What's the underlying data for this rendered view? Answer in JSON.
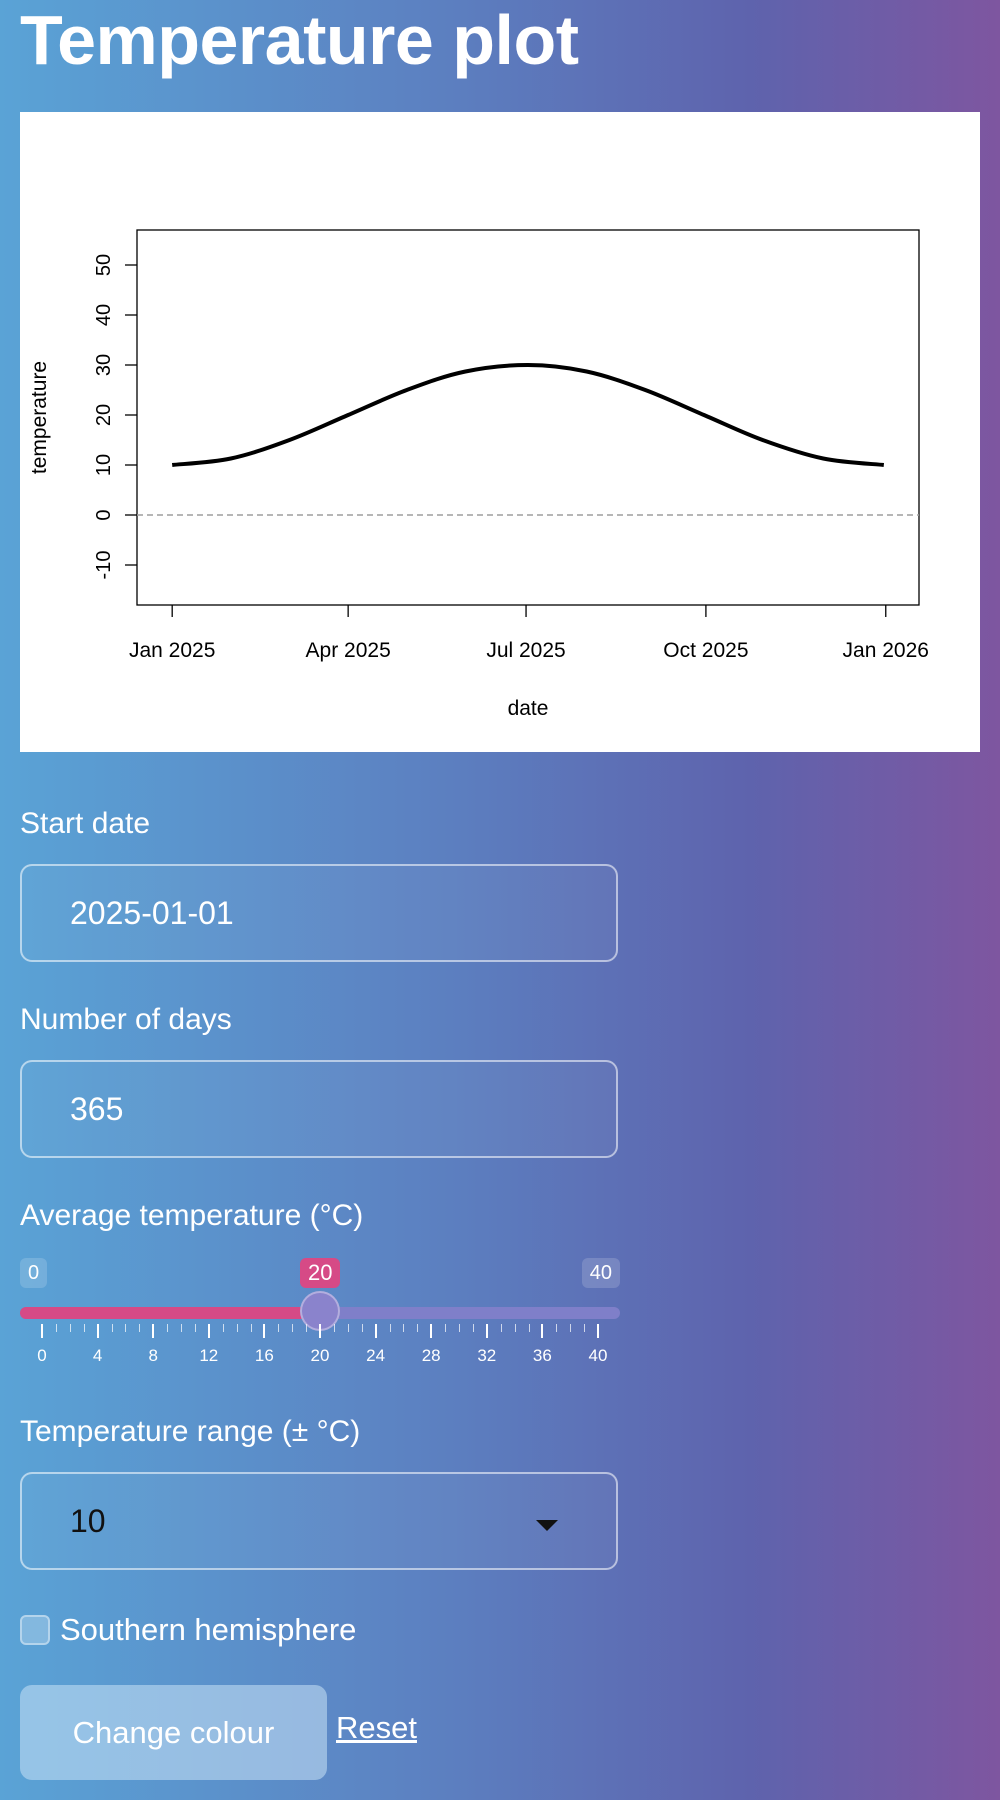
{
  "page": {
    "title": "Temperature plot"
  },
  "chart_data": {
    "type": "line",
    "xlabel": "date",
    "ylabel": "temperature",
    "x_ticks": [
      "Jan 2025",
      "Apr 2025",
      "Jul 2025",
      "Oct 2025",
      "Jan 2026"
    ],
    "y_ticks": [
      "-10",
      "0",
      "10",
      "20",
      "30",
      "40",
      "50"
    ],
    "xlim": [
      "2024-12-14",
      "2026-01-18"
    ],
    "ylim": [
      -18,
      57
    ],
    "reference_line": {
      "y": 0,
      "style": "dashed",
      "color": "#9e9e9e"
    },
    "series": [
      {
        "color": "#000000",
        "points": [
          {
            "x": "2025-01-01",
            "y": 10
          },
          {
            "x": "2025-01-31",
            "y": 11.3
          },
          {
            "x": "2025-03-02",
            "y": 15.0
          },
          {
            "x": "2025-04-01",
            "y": 20.0
          },
          {
            "x": "2025-05-01",
            "y": 25.0
          },
          {
            "x": "2025-05-31",
            "y": 28.7
          },
          {
            "x": "2025-07-02",
            "y": 30.0
          },
          {
            "x": "2025-08-01",
            "y": 28.7
          },
          {
            "x": "2025-08-31",
            "y": 25.0
          },
          {
            "x": "2025-09-30",
            "y": 20.0
          },
          {
            "x": "2025-10-30",
            "y": 15.0
          },
          {
            "x": "2025-11-30",
            "y": 11.3
          },
          {
            "x": "2025-12-31",
            "y": 10
          }
        ]
      }
    ]
  },
  "form": {
    "start_date": {
      "label": "Start date",
      "value": "2025-01-01"
    },
    "num_days": {
      "label": "Number of days",
      "value": "365"
    },
    "avg_temp": {
      "label": "Average temperature (°C)",
      "min": 0,
      "max": 40,
      "value": 20,
      "min_label": "0",
      "max_label": "40",
      "value_label": "20",
      "tick_labels": [
        "0",
        "4",
        "8",
        "12",
        "16",
        "20",
        "24",
        "28",
        "32",
        "36",
        "40"
      ],
      "fill_color": "#d64a86"
    },
    "temp_range": {
      "label": "Temperature range (± °C)",
      "value": "10"
    },
    "southern": {
      "label": "Southern hemisphere",
      "checked": false
    },
    "change_colour_label": "Change colour",
    "reset_label": "Reset"
  }
}
